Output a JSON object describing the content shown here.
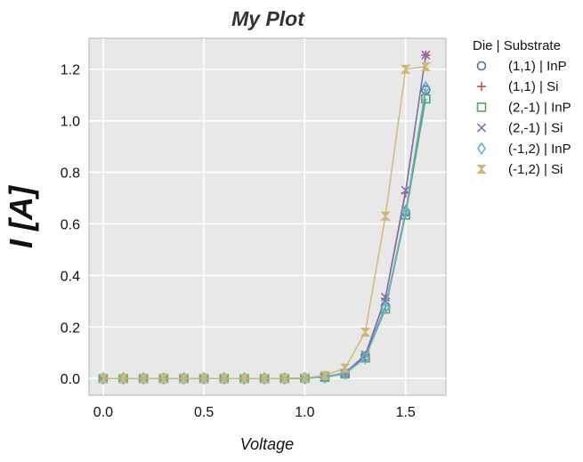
{
  "chart_data": {
    "type": "line",
    "title": "My Plot",
    "xlabel": "Voltage",
    "ylabel": "I [A]",
    "xlim": [
      -0.07,
      1.7
    ],
    "ylim": [
      -0.065,
      1.32
    ],
    "x_ticks": [
      "0.0",
      "0.5",
      "1.0",
      "1.5"
    ],
    "x_tick_values": [
      0,
      0.5,
      1.0,
      1.5
    ],
    "y_ticks": [
      "0.0",
      "0.2",
      "0.4",
      "0.6",
      "0.8",
      "1.0",
      "1.2"
    ],
    "y_tick_values": [
      0,
      0.2,
      0.4,
      0.6,
      0.8,
      1.0,
      1.2
    ],
    "grid": true,
    "background": "#e8e8e8",
    "legend": {
      "title": "Die | Substrate",
      "placement": "outside-right"
    },
    "x": [
      0.0,
      0.1,
      0.2,
      0.3,
      0.4,
      0.5,
      0.6,
      0.7,
      0.8,
      0.9,
      1.0,
      1.1,
      1.2,
      1.3,
      1.4,
      1.5,
      1.6
    ],
    "series": [
      {
        "name": "(1,1) | InP",
        "marker": "circle",
        "color": "#4c72b0",
        "values": [
          0,
          0,
          0,
          0,
          0,
          0,
          0,
          0,
          0,
          0,
          0.001,
          0.005,
          0.02,
          0.085,
          0.28,
          0.645,
          1.12
        ]
      },
      {
        "name": "(1,1) | Si",
        "marker": "plus",
        "color": "#c44e52",
        "values": [
          0,
          0,
          0,
          0,
          0,
          0,
          0,
          0,
          0,
          0,
          0.001,
          0.006,
          0.022,
          0.09,
          0.31,
          0.72,
          1.255
        ]
      },
      {
        "name": "(2,-1) | InP",
        "marker": "square",
        "color": "#55a868",
        "values": [
          0,
          0,
          0,
          0,
          0,
          0,
          0,
          0,
          0,
          0,
          0.001,
          0.005,
          0.018,
          0.08,
          0.27,
          0.635,
          1.085
        ]
      },
      {
        "name": "(2,-1) | Si",
        "marker": "x",
        "color": "#8172b2",
        "values": [
          0,
          0,
          0,
          0,
          0,
          0,
          0,
          0,
          0,
          0,
          0.001,
          0.006,
          0.022,
          0.092,
          0.315,
          0.73,
          1.255
        ]
      },
      {
        "name": "(-1,2) | InP",
        "marker": "diamond",
        "color": "#64b5cd",
        "values": [
          0,
          0,
          0,
          0,
          0,
          0,
          0,
          0,
          0,
          0,
          0.001,
          0.005,
          0.02,
          0.08,
          0.275,
          0.65,
          1.13
        ]
      },
      {
        "name": "(-1,2) | Si",
        "marker": "hourglass",
        "color": "#ccb974",
        "values": [
          0,
          0,
          0,
          0,
          0,
          0,
          0,
          0,
          0,
          0,
          0.002,
          0.012,
          0.04,
          0.18,
          0.63,
          1.2,
          1.21
        ]
      }
    ]
  }
}
